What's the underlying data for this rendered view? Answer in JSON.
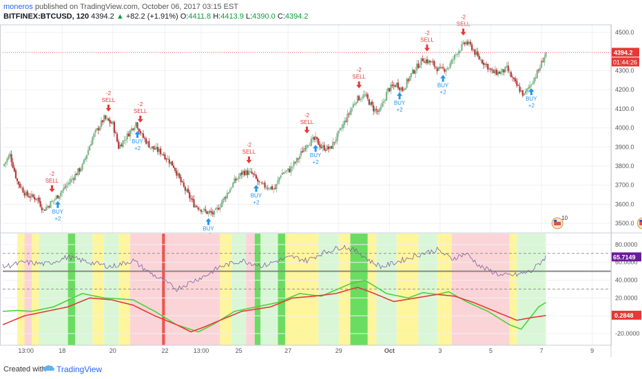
{
  "header": {
    "author": "moneros",
    "published_text": "published on TradingView.com, October 06, 2017 03:15 EST",
    "symbol": "BITFINEX:BTCUSD, 120",
    "last": "4394.2",
    "change_arrow": "▲",
    "change": "+82.2 (+1.91%)",
    "open_label": "O:",
    "open": "4411.8",
    "high_label": "H:",
    "high": "4413.9",
    "low_label": "L:",
    "low": "4390.0",
    "close_label": "C:",
    "close": "4394.2"
  },
  "footer": {
    "created_with": "Created with",
    "brand": "TradingView",
    "logo_icon": "tradingview-logo-icon"
  },
  "colors": {
    "up": "#7cb489",
    "down": "#b33a3a",
    "buy": "#2196f3",
    "sell": "#e53935",
    "rsi": "#7b5fa0",
    "green_line": "#4cd13a",
    "red_line": "#e53935",
    "price_tag": "#e53935",
    "rsi_tag": "#6a1b9a"
  },
  "chart_data": [
    {
      "type": "candlestick",
      "title": "BITFINEX:BTCUSD, 120",
      "ylim": [
        3450,
        4540
      ],
      "y_ticks": [
        "4500.0",
        "4400.0",
        "4300.0",
        "4200.0",
        "4100.0",
        "4000.0",
        "3900.0",
        "3800.0",
        "3700.0",
        "3600.0",
        "3500.0"
      ],
      "y_tick_values": [
        4500,
        4400,
        4300,
        4200,
        4100,
        4000,
        3900,
        3800,
        3700,
        3600,
        3500
      ],
      "last_price_label": "4394.2",
      "last_price": 4394.2,
      "countdown_label": "01:44:26",
      "price_path": [
        [
          0,
          3800
        ],
        [
          5,
          3860
        ],
        [
          10,
          3720
        ],
        [
          16,
          3650
        ],
        [
          24,
          3630
        ],
        [
          28,
          3570
        ],
        [
          35,
          3620
        ],
        [
          42,
          3680
        ],
        [
          55,
          3800
        ],
        [
          62,
          3950
        ],
        [
          70,
          4050
        ],
        [
          76,
          4020
        ],
        [
          80,
          3900
        ],
        [
          86,
          3960
        ],
        [
          92,
          4030
        ],
        [
          96,
          3960
        ],
        [
          102,
          3900
        ],
        [
          110,
          3870
        ],
        [
          118,
          3800
        ],
        [
          124,
          3700
        ],
        [
          132,
          3600
        ],
        [
          140,
          3560
        ],
        [
          146,
          3550
        ],
        [
          152,
          3620
        ],
        [
          160,
          3720
        ],
        [
          166,
          3770
        ],
        [
          172,
          3760
        ],
        [
          178,
          3700
        ],
        [
          184,
          3690
        ],
        [
          188,
          3680
        ],
        [
          192,
          3760
        ],
        [
          198,
          3780
        ],
        [
          204,
          3840
        ],
        [
          210,
          3920
        ],
        [
          216,
          3940
        ],
        [
          220,
          3900
        ],
        [
          226,
          3890
        ],
        [
          232,
          3970
        ],
        [
          238,
          4060
        ],
        [
          244,
          4150
        ],
        [
          250,
          4170
        ],
        [
          256,
          4100
        ],
        [
          260,
          4080
        ],
        [
          266,
          4200
        ],
        [
          272,
          4230
        ],
        [
          276,
          4200
        ],
        [
          282,
          4280
        ],
        [
          290,
          4360
        ],
        [
          296,
          4340
        ],
        [
          302,
          4300
        ],
        [
          308,
          4320
        ],
        [
          314,
          4400
        ],
        [
          320,
          4450
        ],
        [
          324,
          4420
        ],
        [
          328,
          4370
        ],
        [
          334,
          4330
        ],
        [
          338,
          4290
        ],
        [
          344,
          4290
        ],
        [
          348,
          4310
        ],
        [
          354,
          4230
        ],
        [
          360,
          4170
        ],
        [
          366,
          4250
        ],
        [
          370,
          4300
        ],
        [
          372,
          4340
        ],
        [
          375,
          4394
        ]
      ],
      "signals": [
        {
          "type": "SELL",
          "value": "-2",
          "t": 34
        },
        {
          "type": "BUY",
          "value": "+2",
          "t": 38
        },
        {
          "type": "SELL",
          "value": "-2",
          "t": 73
        },
        {
          "type": "SELL",
          "value": "-2",
          "t": 95
        },
        {
          "type": "BUY",
          "value": "+2",
          "t": 93
        },
        {
          "type": "BUY",
          "value": "+2",
          "t": 142
        },
        {
          "type": "SELL",
          "value": "-2",
          "t": 170
        },
        {
          "type": "BUY",
          "value": "+2",
          "t": 175
        },
        {
          "type": "SELL",
          "value": "-2",
          "t": 210
        },
        {
          "type": "BUY",
          "value": "+2",
          "t": 216
        },
        {
          "type": "SELL",
          "value": "-2",
          "t": 246
        },
        {
          "type": "BUY",
          "value": "+2",
          "t": 274
        },
        {
          "type": "SELL",
          "value": "-2",
          "t": 293
        },
        {
          "type": "BUY",
          "value": "+2",
          "t": 304
        },
        {
          "type": "SELL",
          "value": "-2",
          "t": 318
        },
        {
          "type": "BUY",
          "value": "+2",
          "t": 365
        }
      ],
      "event_badges": [
        {
          "label": "10",
          "t": 383
        },
        {
          "label": "",
          "t": 442
        }
      ]
    },
    {
      "type": "line",
      "title": "indicator",
      "ylim": [
        -33,
        93
      ],
      "y_ticks": [
        "80.0000",
        "60.0000",
        "40.0000",
        "20.0000",
        "0.0000",
        "-20.0000"
      ],
      "y_tick_values": [
        80,
        60,
        40,
        20,
        0,
        -20
      ],
      "upper_band": 70,
      "lower_band": 30,
      "mid_level": 50,
      "rsi_last_label": "65.7149",
      "rsi_last": 65.7149,
      "red_last_label": "0.2848",
      "red_last": 0.2848,
      "series": [
        {
          "key": "rsi",
          "points": [
            [
              0,
              55
            ],
            [
              15,
              60
            ],
            [
              30,
              58
            ],
            [
              45,
              66
            ],
            [
              60,
              60
            ],
            [
              75,
              55
            ],
            [
              90,
              62
            ],
            [
              100,
              50
            ],
            [
              110,
              40
            ],
            [
              120,
              30
            ],
            [
              130,
              38
            ],
            [
              140,
              45
            ],
            [
              150,
              55
            ],
            [
              165,
              62
            ],
            [
              180,
              56
            ],
            [
              190,
              62
            ],
            [
              200,
              66
            ],
            [
              210,
              62
            ],
            [
              220,
              70
            ],
            [
              235,
              78
            ],
            [
              245,
              72
            ],
            [
              255,
              60
            ],
            [
              262,
              55
            ],
            [
              275,
              62
            ],
            [
              290,
              70
            ],
            [
              300,
              74
            ],
            [
              310,
              64
            ],
            [
              320,
              70
            ],
            [
              330,
              55
            ],
            [
              345,
              45
            ],
            [
              355,
              46
            ],
            [
              365,
              50
            ],
            [
              375,
              66
            ]
          ]
        },
        {
          "key": "green",
          "points": [
            [
              0,
              5
            ],
            [
              10,
              6
            ],
            [
              20,
              5
            ],
            [
              35,
              10
            ],
            [
              55,
              25
            ],
            [
              70,
              20
            ],
            [
              90,
              18
            ],
            [
              105,
              5
            ],
            [
              120,
              -10
            ],
            [
              135,
              -18
            ],
            [
              145,
              -10
            ],
            [
              160,
              5
            ],
            [
              175,
              10
            ],
            [
              190,
              15
            ],
            [
              205,
              25
            ],
            [
              220,
              22
            ],
            [
              240,
              36
            ],
            [
              250,
              40
            ],
            [
              265,
              25
            ],
            [
              280,
              20
            ],
            [
              290,
              26
            ],
            [
              300,
              24
            ],
            [
              308,
              27
            ],
            [
              320,
              16
            ],
            [
              335,
              5
            ],
            [
              350,
              -10
            ],
            [
              358,
              -15
            ],
            [
              370,
              10
            ],
            [
              375,
              15
            ]
          ]
        },
        {
          "key": "red",
          "points": [
            [
              0,
              -10
            ],
            [
              15,
              0
            ],
            [
              30,
              5
            ],
            [
              45,
              10
            ],
            [
              60,
              20
            ],
            [
              75,
              18
            ],
            [
              90,
              12
            ],
            [
              105,
              0
            ],
            [
              120,
              -10
            ],
            [
              130,
              -18
            ],
            [
              140,
              -12
            ],
            [
              150,
              -5
            ],
            [
              165,
              5
            ],
            [
              185,
              10
            ],
            [
              200,
              20
            ],
            [
              215,
              22
            ],
            [
              230,
              25
            ],
            [
              245,
              32
            ],
            [
              255,
              26
            ],
            [
              270,
              16
            ],
            [
              285,
              20
            ],
            [
              300,
              24
            ],
            [
              312,
              22
            ],
            [
              325,
              15
            ],
            [
              340,
              5
            ],
            [
              355,
              -5
            ],
            [
              365,
              -2
            ],
            [
              375,
              0.3
            ]
          ]
        }
      ],
      "zones": [
        {
          "from": 0,
          "to": 10,
          "state": "neutral"
        },
        {
          "from": 10,
          "to": 15,
          "state": "yellow"
        },
        {
          "from": 15,
          "to": 20,
          "state": "red"
        },
        {
          "from": 20,
          "to": 25,
          "state": "yellow"
        },
        {
          "from": 25,
          "to": 45,
          "state": "green"
        },
        {
          "from": 45,
          "to": 50,
          "state": "bright"
        },
        {
          "from": 50,
          "to": 62,
          "state": "green"
        },
        {
          "from": 62,
          "to": 70,
          "state": "yellow"
        },
        {
          "from": 70,
          "to": 80,
          "state": "green"
        },
        {
          "from": 80,
          "to": 88,
          "state": "yellow"
        },
        {
          "from": 88,
          "to": 110,
          "state": "red"
        },
        {
          "from": 110,
          "to": 112,
          "state": "strongred"
        },
        {
          "from": 112,
          "to": 150,
          "state": "red"
        },
        {
          "from": 150,
          "to": 158,
          "state": "yellow"
        },
        {
          "from": 158,
          "to": 168,
          "state": "green"
        },
        {
          "from": 168,
          "to": 174,
          "state": "red"
        },
        {
          "from": 174,
          "to": 178,
          "state": "bright"
        },
        {
          "from": 178,
          "to": 190,
          "state": "green"
        },
        {
          "from": 190,
          "to": 195,
          "state": "bright"
        },
        {
          "from": 195,
          "to": 200,
          "state": "yellow"
        },
        {
          "from": 200,
          "to": 218,
          "state": "yellow"
        },
        {
          "from": 218,
          "to": 232,
          "state": "green"
        },
        {
          "from": 232,
          "to": 240,
          "state": "yellow"
        },
        {
          "from": 240,
          "to": 252,
          "state": "bright"
        },
        {
          "from": 252,
          "to": 258,
          "state": "yellow"
        },
        {
          "from": 258,
          "to": 272,
          "state": "green"
        },
        {
          "from": 272,
          "to": 287,
          "state": "yellow"
        },
        {
          "from": 287,
          "to": 300,
          "state": "green"
        },
        {
          "from": 300,
          "to": 310,
          "state": "yellow"
        },
        {
          "from": 310,
          "to": 350,
          "state": "red"
        },
        {
          "from": 350,
          "to": 355,
          "state": "yellow"
        },
        {
          "from": 355,
          "to": 375,
          "state": "green"
        }
      ]
    }
  ],
  "x_axis": {
    "ticks": [
      {
        "label": "13:00",
        "t": 16
      },
      {
        "label": "18",
        "t": 41
      },
      {
        "label": "20",
        "t": 76
      },
      {
        "label": "22",
        "t": 112
      },
      {
        "label": "13:00",
        "t": 137
      },
      {
        "label": "25",
        "t": 163
      },
      {
        "label": "27",
        "t": 197
      },
      {
        "label": "29",
        "t": 232
      },
      {
        "label": "Oct",
        "t": 267
      },
      {
        "label": "3",
        "t": 302
      },
      {
        "label": "5",
        "t": 337
      },
      {
        "label": "7",
        "t": 372
      },
      {
        "label": "9",
        "t": 407
      }
    ],
    "bold_ticks": [
      "Oct"
    ]
  }
}
